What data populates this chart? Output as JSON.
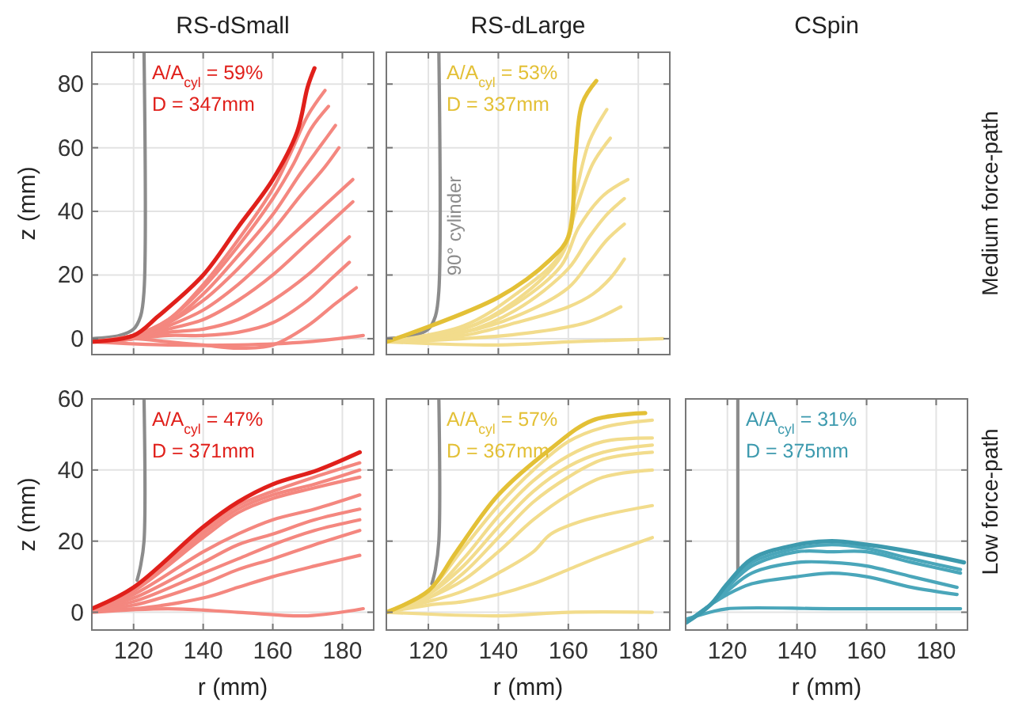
{
  "chart_data": [
    {
      "type": "line",
      "title": "RS-dSmall",
      "ylabel": "z (mm)",
      "xlim": [
        108,
        189
      ],
      "ylim": [
        -5,
        90
      ],
      "xticks": [
        120,
        140,
        160,
        180
      ],
      "yticks": [
        0,
        20,
        40,
        60,
        80
      ],
      "grid": true,
      "tick_labels": "y",
      "annotations": [
        "A/A$_{cyl}$ = 59%",
        "D = 347mm"
      ],
      "series": [
        {
          "color": "#8c8c8c",
          "x": [
            108,
            116,
            120,
            122,
            123,
            123
          ],
          "values": [
            0,
            1,
            3,
            7,
            15,
            90
          ]
        },
        {
          "color": "#f4877f",
          "x": [
            108,
            130,
            150,
            170,
            186
          ],
          "values": [
            -1,
            -2,
            -2,
            -1,
            1
          ]
        },
        {
          "color": "#f4877f",
          "x": [
            108,
            120,
            130,
            140,
            150,
            160,
            170,
            178,
            184
          ],
          "values": [
            -1,
            0,
            -1,
            -2,
            -3,
            -2,
            4,
            11,
            16
          ]
        },
        {
          "color": "#f4877f",
          "x": [
            108,
            120,
            130,
            140,
            150,
            160,
            170,
            177,
            182
          ],
          "values": [
            -1,
            0,
            1,
            1,
            2,
            5,
            12,
            19,
            24
          ]
        },
        {
          "color": "#f4877f",
          "x": [
            108,
            120,
            130,
            140,
            150,
            160,
            170,
            177,
            182
          ],
          "values": [
            -1,
            0,
            2,
            3,
            6,
            12,
            20,
            27,
            32
          ]
        },
        {
          "color": "#f4877f",
          "x": [
            108,
            120,
            130,
            140,
            150,
            160,
            170,
            178,
            183
          ],
          "values": [
            -1,
            0,
            3,
            6,
            12,
            20,
            30,
            38,
            43
          ]
        },
        {
          "color": "#f4877f",
          "x": [
            108,
            120,
            130,
            140,
            150,
            160,
            170,
            178,
            183
          ],
          "values": [
            -1,
            0,
            4,
            9,
            17,
            27,
            37,
            45,
            50
          ]
        },
        {
          "color": "#f4877f",
          "x": [
            108,
            120,
            130,
            140,
            150,
            160,
            168,
            175,
            179
          ],
          "values": [
            -1,
            1,
            5,
            12,
            22,
            34,
            45,
            54,
            60
          ]
        },
        {
          "color": "#f4877f",
          "x": [
            108,
            120,
            130,
            140,
            150,
            160,
            168,
            174,
            178
          ],
          "values": [
            -1,
            1,
            5,
            14,
            26,
            39,
            52,
            61,
            67
          ]
        },
        {
          "color": "#f4877f",
          "x": [
            108,
            120,
            130,
            140,
            150,
            160,
            166,
            171,
            176
          ],
          "values": [
            -1,
            1,
            6,
            16,
            29,
            44,
            55,
            66,
            73
          ]
        },
        {
          "color": "#f4877f",
          "x": [
            108,
            120,
            130,
            140,
            150,
            160,
            165,
            170,
            175
          ],
          "values": [
            -1,
            1,
            6,
            17,
            31,
            47,
            58,
            70,
            78
          ]
        },
        {
          "color": "#e0201b",
          "x": [
            108,
            120,
            127,
            140,
            150,
            160,
            167,
            170,
            172
          ],
          "values": [
            -1,
            1,
            7,
            20,
            35,
            50,
            65,
            79,
            85
          ]
        }
      ]
    },
    {
      "type": "line",
      "title": "RS-dLarge",
      "xlim": [
        108,
        189
      ],
      "ylim": [
        -5,
        90
      ],
      "xticks": [
        120,
        140,
        160,
        180
      ],
      "yticks": [
        0,
        20,
        40,
        60,
        80
      ],
      "grid": true,
      "tick_labels": false,
      "annotations": [
        "A/A$_{cyl}$ = 53%",
        "D = 337mm"
      ],
      "series": [
        {
          "name": "90° cylinder",
          "color": "#8c8c8c",
          "x": [
            108,
            116,
            120,
            122,
            123,
            123
          ],
          "values": [
            0,
            1,
            3,
            7,
            15,
            90
          ]
        },
        {
          "color": "#f2dc8c",
          "x": [
            108,
            140,
            160,
            187
          ],
          "values": [
            -1,
            -2,
            -1,
            0
          ]
        },
        {
          "color": "#f2dc8c",
          "x": [
            108,
            130,
            150,
            165,
            175
          ],
          "values": [
            -1,
            0,
            2,
            5,
            10
          ]
        },
        {
          "color": "#f2dc8c",
          "x": [
            108,
            130,
            145,
            160,
            167,
            172,
            176
          ],
          "values": [
            -1,
            1,
            5,
            10,
            14,
            19,
            25
          ]
        },
        {
          "color": "#f2dc8c",
          "x": [
            108,
            130,
            145,
            160,
            166,
            171,
            176
          ],
          "values": [
            -1,
            2,
            7,
            16,
            24,
            31,
            36
          ]
        },
        {
          "color": "#f2dc8c",
          "x": [
            108,
            130,
            145,
            160,
            166,
            171,
            176
          ],
          "values": [
            -1,
            2,
            9,
            22,
            32,
            39,
            44
          ]
        },
        {
          "color": "#f2dc8c",
          "x": [
            108,
            130,
            145,
            158,
            163,
            170,
            177
          ],
          "values": [
            -1,
            3,
            11,
            23,
            35,
            45,
            50
          ]
        },
        {
          "color": "#f2dc8c",
          "x": [
            108,
            130,
            145,
            158,
            162,
            167,
            172
          ],
          "values": [
            -1,
            3,
            12,
            26,
            40,
            55,
            63
          ]
        },
        {
          "color": "#f2dc8c",
          "x": [
            108,
            130,
            145,
            158,
            162,
            166,
            171
          ],
          "values": [
            -1,
            4,
            14,
            27,
            45,
            62,
            72
          ]
        },
        {
          "color": "#e3c036",
          "x": [
            108,
            140,
            155,
            160,
            162,
            164,
            168
          ],
          "values": [
            -1,
            13,
            25,
            32,
            57,
            74,
            81
          ]
        }
      ]
    },
    {
      "type": "other",
      "title": "CSpin",
      "y2label": "Medium force-path"
    },
    {
      "type": "line",
      "xlabel": "r (mm)",
      "ylabel": "z (mm)",
      "xlim": [
        108,
        189
      ],
      "ylim": [
        -5,
        60
      ],
      "xticks": [
        120,
        140,
        160,
        180
      ],
      "yticks": [
        0,
        20,
        40,
        60
      ],
      "grid": true,
      "annotations": [
        "A/A$_{cyl}$ = 47%",
        "D = 371mm"
      ],
      "series": [
        {
          "color": "#8c8c8c",
          "x": [
            121,
            122,
            123,
            123
          ],
          "values": [
            9,
            13,
            20,
            60
          ]
        },
        {
          "color": "#f4877f",
          "x": [
            108,
            130,
            150,
            170,
            186
          ],
          "values": [
            0,
            1,
            0,
            -1,
            1
          ]
        },
        {
          "color": "#f4877f",
          "x": [
            108,
            120,
            140,
            150,
            160,
            172,
            185
          ],
          "values": [
            1,
            1,
            4,
            7,
            10,
            13,
            16
          ]
        },
        {
          "color": "#f4877f",
          "x": [
            108,
            120,
            140,
            150,
            160,
            172,
            185
          ],
          "values": [
            1,
            2,
            8,
            12,
            15,
            19,
            23
          ]
        },
        {
          "color": "#f4877f",
          "x": [
            108,
            120,
            140,
            150,
            160,
            172,
            185
          ],
          "values": [
            1,
            3,
            11,
            15,
            19,
            23,
            26
          ]
        },
        {
          "color": "#f4877f",
          "x": [
            108,
            120,
            140,
            150,
            160,
            172,
            185
          ],
          "values": [
            1,
            4,
            14,
            19,
            22,
            26,
            29
          ]
        },
        {
          "color": "#f4877f",
          "x": [
            108,
            120,
            140,
            150,
            160,
            172,
            185
          ],
          "values": [
            1,
            5,
            17,
            22,
            26,
            29,
            33
          ]
        },
        {
          "color": "#f4877f",
          "x": [
            108,
            120,
            140,
            150,
            160,
            172,
            185
          ],
          "values": [
            1,
            6,
            21,
            28,
            32,
            35,
            38
          ]
        },
        {
          "color": "#f4877f",
          "x": [
            108,
            120,
            140,
            150,
            160,
            172,
            185
          ],
          "values": [
            1,
            6,
            22,
            29,
            33,
            36,
            40
          ]
        },
        {
          "color": "#f4877f",
          "x": [
            108,
            120,
            140,
            150,
            160,
            172,
            185
          ],
          "values": [
            1,
            7,
            23,
            30,
            34,
            38,
            42
          ]
        },
        {
          "color": "#e0201b",
          "x": [
            108,
            120,
            140,
            150,
            160,
            173,
            185
          ],
          "values": [
            1,
            7,
            24,
            31,
            36,
            40,
            45
          ]
        }
      ]
    },
    {
      "type": "line",
      "xlabel": "r (mm)",
      "xlim": [
        108,
        189
      ],
      "ylim": [
        -5,
        60
      ],
      "xticks": [
        120,
        140,
        160,
        180
      ],
      "yticks": [
        0,
        20,
        40,
        60
      ],
      "grid": true,
      "tick_labels": "x",
      "annotations": [
        "A/A$_{cyl}$ = 57%",
        "D = 367mm"
      ],
      "series": [
        {
          "color": "#8c8c8c",
          "x": [
            121,
            122,
            123,
            123
          ],
          "values": [
            8,
            12,
            20,
            60
          ]
        },
        {
          "color": "#f2dc8c",
          "x": [
            108,
            140,
            160,
            184
          ],
          "values": [
            0,
            -1,
            0,
            0
          ]
        },
        {
          "color": "#f2dc8c",
          "x": [
            108,
            120,
            130,
            140,
            150,
            160,
            170,
            184
          ],
          "values": [
            0,
            2,
            3,
            5,
            8,
            12,
            16,
            21
          ]
        },
        {
          "color": "#f2dc8c",
          "x": [
            108,
            120,
            130,
            140,
            150,
            155,
            165,
            184
          ],
          "values": [
            0,
            3,
            6,
            11,
            17,
            22,
            26,
            30
          ]
        },
        {
          "color": "#f2dc8c",
          "x": [
            108,
            120,
            130,
            140,
            150,
            160,
            170,
            184
          ],
          "values": [
            0,
            4,
            9,
            17,
            26,
            33,
            38,
            40
          ]
        },
        {
          "color": "#f2dc8c",
          "x": [
            108,
            120,
            130,
            140,
            150,
            160,
            170,
            184
          ],
          "values": [
            0,
            4,
            11,
            21,
            31,
            38,
            43,
            45
          ]
        },
        {
          "color": "#f2dc8c",
          "x": [
            108,
            120,
            130,
            140,
            150,
            160,
            170,
            184
          ],
          "values": [
            0,
            5,
            13,
            24,
            34,
            41,
            45,
            47
          ]
        },
        {
          "color": "#f2dc8c",
          "x": [
            108,
            120,
            130,
            140,
            150,
            160,
            170,
            184
          ],
          "values": [
            0,
            5,
            15,
            27,
            37,
            44,
            48,
            49
          ]
        },
        {
          "color": "#f2dc8c",
          "x": [
            108,
            120,
            130,
            140,
            150,
            160,
            170,
            184
          ],
          "values": [
            0,
            6,
            18,
            30,
            40,
            48,
            52,
            54
          ]
        },
        {
          "color": "#e3c036",
          "x": [
            108,
            120,
            128,
            140,
            155,
            167,
            182
          ],
          "values": [
            0,
            6,
            17,
            33,
            46,
            54,
            56
          ]
        }
      ]
    },
    {
      "type": "line",
      "xlabel": "r (mm)",
      "y2label": "Low force-path",
      "xlim": [
        108,
        189
      ],
      "ylim": [
        -5,
        60
      ],
      "xticks": [
        120,
        140,
        160,
        180
      ],
      "yticks": [
        0,
        20,
        40,
        60
      ],
      "grid": true,
      "tick_labels": "x",
      "annotations": [
        "A/A$_{cyl}$ = 31%",
        "D = 375mm"
      ],
      "series": [
        {
          "color": "#8c8c8c",
          "x": [
            123,
            123
          ],
          "values": [
            10,
            60
          ]
        },
        {
          "color": "#4aa6ba",
          "x": [
            108,
            115,
            120,
            150,
            187
          ],
          "values": [
            -2,
            0,
            1,
            1,
            1
          ]
        },
        {
          "color": "#4aa6ba",
          "x": [
            108,
            115,
            120,
            127,
            140,
            150,
            160,
            173,
            186
          ],
          "values": [
            -3,
            2,
            5,
            8,
            10,
            11,
            10,
            7,
            5
          ]
        },
        {
          "color": "#4aa6ba",
          "x": [
            108,
            115,
            120,
            127,
            140,
            150,
            160,
            173,
            186
          ],
          "values": [
            -3,
            2,
            6,
            11,
            14,
            14,
            13,
            10,
            7
          ]
        },
        {
          "color": "#4aa6ba",
          "x": [
            108,
            115,
            120,
            127,
            140,
            150,
            160,
            173,
            187
          ],
          "values": [
            -3,
            2,
            7,
            13,
            17,
            17,
            17,
            14,
            11
          ]
        },
        {
          "color": "#4aa6ba",
          "x": [
            108,
            115,
            120,
            127,
            140,
            150,
            160,
            173,
            187
          ],
          "values": [
            -3,
            2,
            8,
            14,
            18,
            19,
            18,
            15,
            12
          ]
        },
        {
          "color": "#3d9aae",
          "x": [
            108,
            115,
            120,
            127,
            140,
            150,
            160,
            173,
            188
          ],
          "values": [
            -3,
            2,
            8,
            15,
            19,
            20,
            19,
            17,
            14
          ]
        }
      ]
    }
  ]
}
